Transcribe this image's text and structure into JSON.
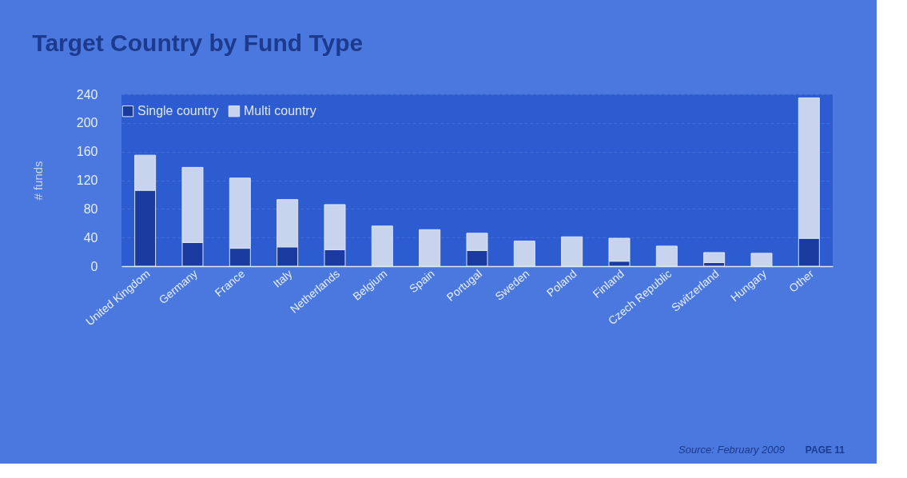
{
  "chart_data": {
    "type": "bar",
    "title": "Target Country by Fund Type",
    "ylabel": "# funds",
    "categories": [
      "United Kingdom",
      "Germany",
      "France",
      "Italy",
      "Netherlands",
      "Belgium",
      "Spain",
      "Portugal",
      "Sweden",
      "Poland",
      "Finland",
      "Czech Republic",
      "Switzerland",
      "Hungary",
      "Other"
    ],
    "stacked": true,
    "series": [
      {
        "name": "Single country",
        "color": "#1a3aa0",
        "values": [
          106,
          33,
          25,
          27,
          23,
          null,
          0,
          22,
          0,
          0,
          7,
          0,
          5,
          0,
          39
        ]
      },
      {
        "name": "Multi country",
        "color": "#c8d4ee",
        "values": [
          49,
          105,
          98,
          66,
          63,
          56,
          51,
          24,
          35,
          41,
          32,
          28,
          14,
          18,
          196
        ]
      }
    ],
    "ylim": [
      0,
      240
    ],
    "yticks": [
      0,
      40,
      80,
      120,
      160,
      200,
      240
    ],
    "grid": "y",
    "legend": "top",
    "annotations": [
      "Source: February 2009",
      "PAGE 11"
    ]
  }
}
